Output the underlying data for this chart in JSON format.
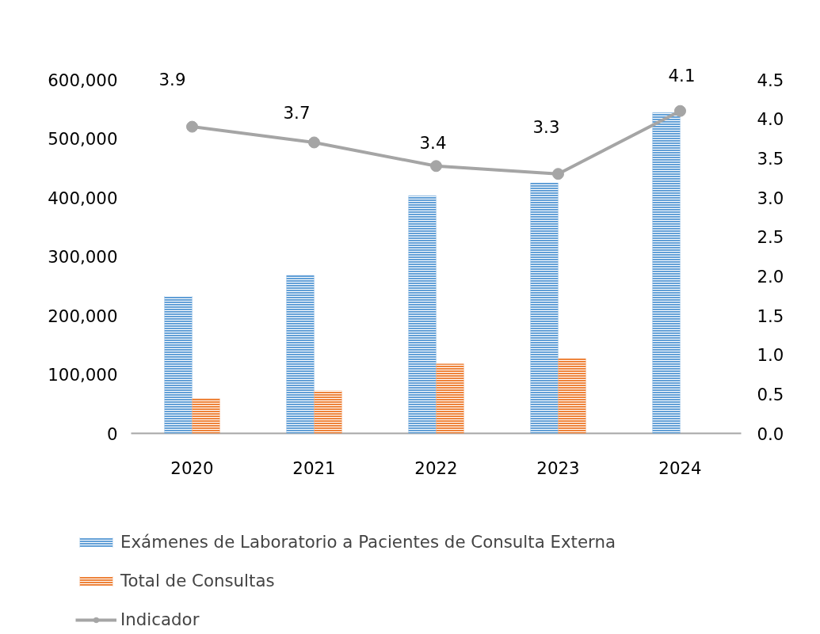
{
  "chart_data": {
    "type": "bar",
    "categories": [
      "2020",
      "2021",
      "2022",
      "2023",
      "2024"
    ],
    "series": [
      {
        "name": "Exámenes de Laboratorio a Pacientes de Consulta Externa",
        "color": "#5b9bd5",
        "values": [
          233000,
          268000,
          403000,
          425000,
          544000
        ]
      },
      {
        "name": "Total de Consultas",
        "color": "#ed7d31",
        "values": [
          59000,
          72000,
          118000,
          127000,
          null
        ]
      },
      {
        "name": "Indicador",
        "type": "line",
        "axis": "y2",
        "color": "#a5a5a5",
        "marker": "circle",
        "values": [
          3.9,
          3.7,
          3.4,
          3.3,
          4.1
        ],
        "value_labels": [
          "3.9",
          "3.7",
          "3.4",
          "3.3",
          "4.1"
        ]
      }
    ],
    "ylim": [
      0,
      600000
    ],
    "yticks": [
      {
        "value": 0,
        "label": "0"
      },
      {
        "value": 100000,
        "label": "100,000"
      },
      {
        "value": 200000,
        "label": "200,000"
      },
      {
        "value": 300000,
        "label": "300,000"
      },
      {
        "value": 400000,
        "label": "400,000"
      },
      {
        "value": 500000,
        "label": "500,000"
      },
      {
        "value": 600000,
        "label": "600,000"
      }
    ],
    "y2lim": [
      0,
      4.5
    ],
    "y2ticks": [
      {
        "value": 0,
        "label": "0.0"
      },
      0.5,
      {
        "value": 1,
        "label": "1.0"
      },
      1.5,
      {
        "value": 2,
        "label": "2.0"
      },
      2.5,
      {
        "value": 3,
        "label": "3.0"
      },
      3.5,
      {
        "value": 4,
        "label": "4.0"
      },
      4.5
    ],
    "grid": false,
    "legend": "bottom"
  }
}
